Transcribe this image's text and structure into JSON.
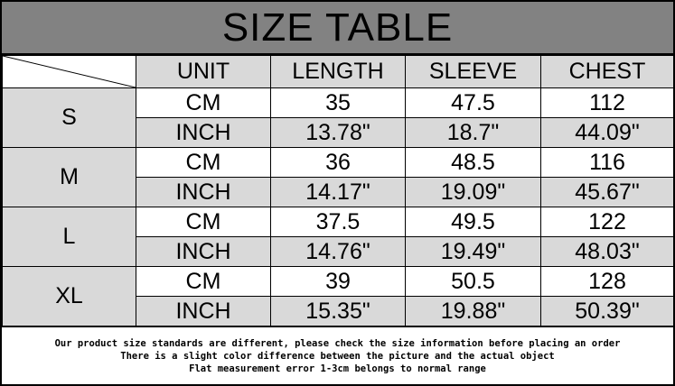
{
  "title": "SIZE TABLE",
  "headers": [
    "UNIT",
    "LENGTH",
    "SLEEVE",
    "CHEST"
  ],
  "sizes": [
    {
      "size": "S",
      "cm": [
        "CM",
        "35",
        "47.5",
        "112"
      ],
      "inch": [
        "INCH",
        "13.78\"",
        "18.7\"",
        "44.09\""
      ]
    },
    {
      "size": "M",
      "cm": [
        "CM",
        "36",
        "48.5",
        "116"
      ],
      "inch": [
        "INCH",
        "14.17\"",
        "19.09\"",
        "45.67\""
      ]
    },
    {
      "size": "L",
      "cm": [
        "CM",
        "37.5",
        "49.5",
        "122"
      ],
      "inch": [
        "INCH",
        "14.76\"",
        "19.49\"",
        "48.03\""
      ]
    },
    {
      "size": "XL",
      "cm": [
        "CM",
        "39",
        "50.5",
        "128"
      ],
      "inch": [
        "INCH",
        "15.35\"",
        "19.88\"",
        "50.39\""
      ]
    }
  ],
  "notes": [
    "Our product size standards are different, please check the size information before placing an order",
    "There is a slight color difference between the picture and the actual object",
    "Flat measurement error 1-3cm belongs to normal range"
  ],
  "colors": {
    "title_bg": "#828282",
    "cell_gray": "#d9d9d9"
  }
}
